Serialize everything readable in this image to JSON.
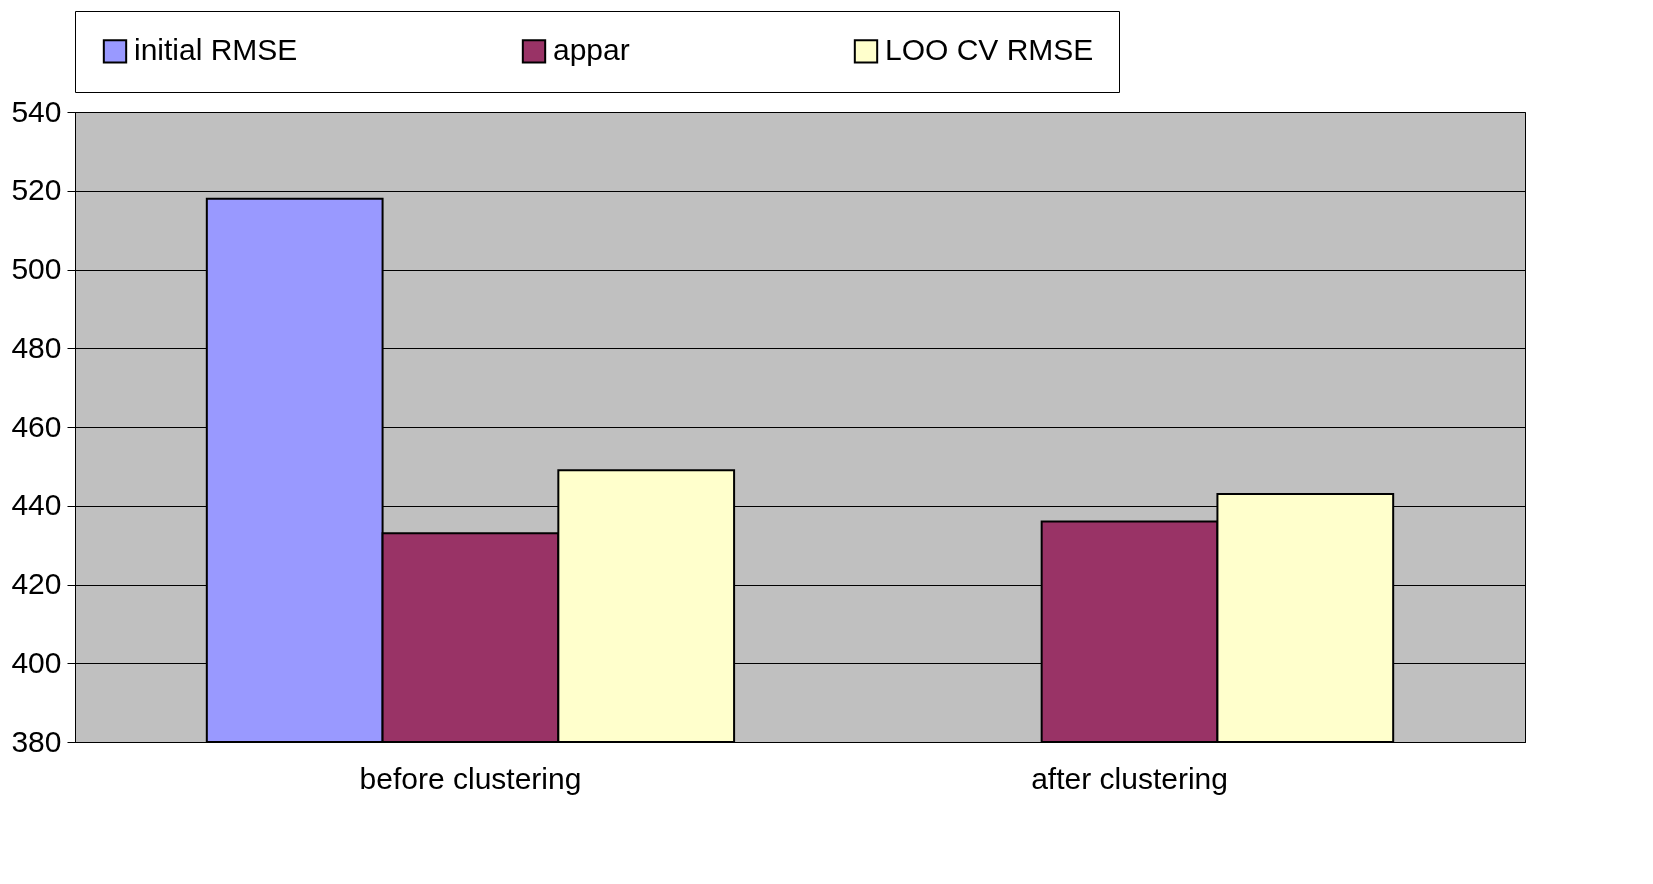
{
  "chart_data": {
    "type": "bar",
    "categories": [
      "before clustering",
      "after clustering"
    ],
    "series": [
      {
        "name": "initial RMSE",
        "color": "#9999ff",
        "values": [
          518,
          null
        ]
      },
      {
        "name": "appar",
        "color": "#993366",
        "values": [
          433,
          436
        ]
      },
      {
        "name": "LOO CV RMSE",
        "color": "#ffffcc",
        "values": [
          449,
          443
        ]
      }
    ],
    "ylim": [
      380,
      540
    ],
    "yticks": [
      380,
      400,
      420,
      440,
      460,
      480,
      500,
      520,
      540
    ],
    "grid": "y",
    "legend": "top"
  }
}
